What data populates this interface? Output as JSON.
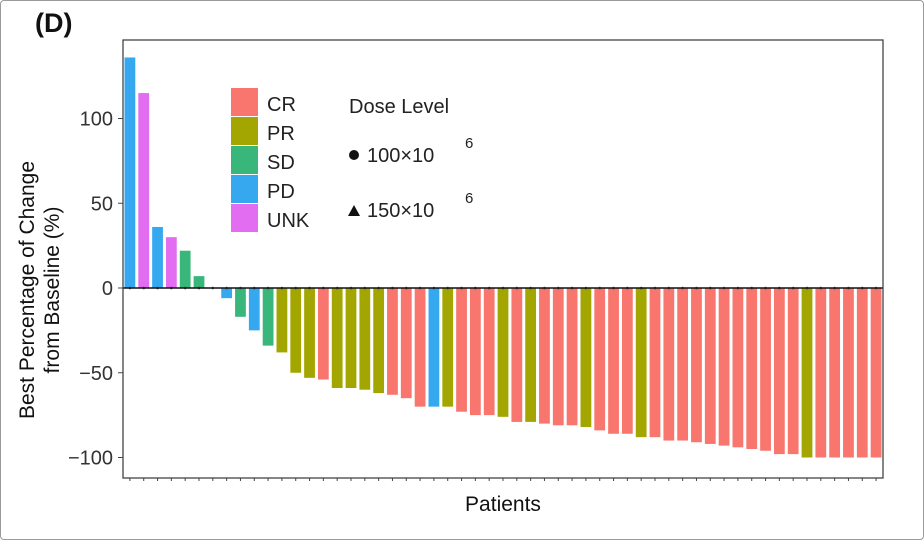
{
  "panel_label": "(D)",
  "chart_data": {
    "type": "bar",
    "title": "",
    "xlabel": "Patients",
    "ylabel": [
      "Best Percentage of Change",
      "from Baseline (%)"
    ],
    "ylim": [
      -110,
      140
    ],
    "yticks": [
      100,
      50,
      0,
      -50,
      -100
    ],
    "ytick_labels": [
      "100",
      "50",
      "0",
      "−50",
      "−100"
    ],
    "grid": false,
    "legend_position": "top-center",
    "legend": {
      "response_entries": [
        {
          "label": "CR",
          "color": "#F8766D"
        },
        {
          "label": "PR",
          "color": "#A3A500"
        },
        {
          "label": "SD",
          "color": "#39B77B"
        },
        {
          "label": "PD",
          "color": "#35A8F0"
        },
        {
          "label": "UNK",
          "color": "#E36DF0"
        }
      ],
      "dose_title": "Dose Level",
      "dose_entries": [
        {
          "label": "100×10",
          "exponent": "6",
          "marker": "circle"
        },
        {
          "label": "150×10",
          "exponent": "6",
          "marker": "triangle"
        }
      ]
    },
    "series": [
      {
        "name": "Best % change",
        "values": [
          136,
          115,
          36,
          30,
          22,
          7,
          0,
          -6,
          -17,
          -25,
          -34,
          -38,
          -50,
          -53,
          -54,
          -59,
          -59,
          -60,
          -62,
          -63,
          -65,
          -70,
          -70,
          -70,
          -73,
          -75,
          -75,
          -76,
          -79,
          -79,
          -80,
          -81,
          -81,
          -82,
          -84,
          -86,
          -86,
          -88,
          -88,
          -90,
          -90,
          -91,
          -92,
          -93,
          -94,
          -95,
          -96,
          -98,
          -98,
          -100,
          -100,
          -100,
          -100,
          -100,
          -100
        ],
        "response": [
          "PD",
          "UNK",
          "PD",
          "UNK",
          "SD",
          "SD",
          "SD",
          "PD",
          "SD",
          "PD",
          "SD",
          "PR",
          "PR",
          "PR",
          "CR",
          "PR",
          "PR",
          "PR",
          "PR",
          "CR",
          "CR",
          "CR",
          "PD",
          "PR",
          "CR",
          "CR",
          "CR",
          "PR",
          "CR",
          "PR",
          "CR",
          "CR",
          "CR",
          "PR",
          "CR",
          "CR",
          "CR",
          "PR",
          "CR",
          "CR",
          "CR",
          "CR",
          "CR",
          "CR",
          "CR",
          "CR",
          "CR",
          "CR",
          "CR",
          "PR",
          "CR",
          "CR",
          "CR",
          "CR",
          "CR"
        ]
      }
    ]
  }
}
